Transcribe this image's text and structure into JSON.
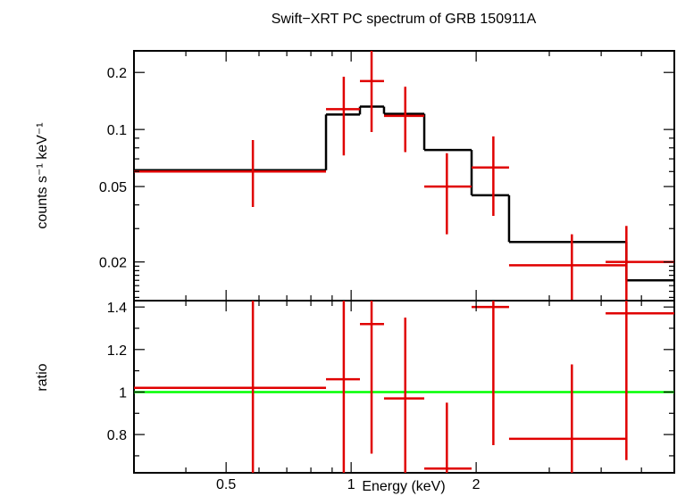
{
  "chart_data": [
    {
      "type": "line",
      "panel": "spectrum",
      "title": "Swift−XRT PC spectrum of GRB 150911A",
      "ylabel": "counts s⁻¹ keV⁻¹",
      "xlabel": "",
      "x_scale": "log",
      "y_scale": "log",
      "xlim": [
        0.3,
        6.0
      ],
      "ylim": [
        0.0125,
        0.26
      ],
      "yticks": [
        {
          "value": 0.02,
          "label": "0.02"
        },
        {
          "value": 0.05,
          "label": "0.05"
        },
        {
          "value": 0.1,
          "label": "0.1"
        },
        {
          "value": 0.2,
          "label": "0.2"
        }
      ],
      "data_points": [
        {
          "x": 0.58,
          "xlo": 0.3,
          "xhi": 0.87,
          "y": 0.06,
          "ylo": 0.039,
          "yhi": 0.088
        },
        {
          "x": 0.96,
          "xlo": 0.87,
          "xhi": 1.05,
          "y": 0.128,
          "ylo": 0.073,
          "yhi": 0.19
        },
        {
          "x": 1.12,
          "xlo": 1.05,
          "xhi": 1.2,
          "y": 0.18,
          "ylo": 0.097,
          "yhi": 0.27
        },
        {
          "x": 1.35,
          "xlo": 1.2,
          "xhi": 1.5,
          "y": 0.118,
          "ylo": 0.076,
          "yhi": 0.168
        },
        {
          "x": 1.7,
          "xlo": 1.5,
          "xhi": 1.95,
          "y": 0.05,
          "ylo": 0.028,
          "yhi": 0.075
        },
        {
          "x": 2.2,
          "xlo": 1.95,
          "xhi": 2.4,
          "y": 0.063,
          "ylo": 0.035,
          "yhi": 0.092
        },
        {
          "x": 3.4,
          "xlo": 2.4,
          "xhi": 4.6,
          "y": 0.0192,
          "ylo": 0.0125,
          "yhi": 0.028
        },
        {
          "x": 4.6,
          "xlo": 4.1,
          "xhi": 6.0,
          "y": 0.02,
          "ylo": 0.0125,
          "yhi": 0.031
        }
      ],
      "model_steps": [
        {
          "xlo": 0.3,
          "xhi": 0.87,
          "y": 0.061
        },
        {
          "xlo": 0.87,
          "xhi": 1.05,
          "y": 0.12
        },
        {
          "xlo": 1.05,
          "xhi": 1.2,
          "y": 0.132
        },
        {
          "xlo": 1.2,
          "xhi": 1.5,
          "y": 0.121
        },
        {
          "xlo": 1.5,
          "xhi": 1.95,
          "y": 0.078
        },
        {
          "xlo": 1.95,
          "xhi": 2.4,
          "y": 0.045
        },
        {
          "xlo": 2.4,
          "xhi": 4.6,
          "y": 0.0255
        },
        {
          "xlo": 4.6,
          "xhi": 6.0,
          "y": 0.016
        }
      ],
      "colors": {
        "data": "#e00000",
        "model": "#000000"
      }
    },
    {
      "type": "line",
      "panel": "ratio",
      "title": "",
      "ylabel": "ratio",
      "xlabel": "Energy (keV)",
      "x_scale": "log",
      "y_scale": "linear",
      "xlim": [
        0.3,
        6.0
      ],
      "ylim": [
        0.62,
        1.43
      ],
      "xticks": [
        {
          "value": 0.5,
          "label": "0.5"
        },
        {
          "value": 1,
          "label": "1"
        },
        {
          "value": 2,
          "label": "2"
        }
      ],
      "yticks": [
        {
          "value": 0.8,
          "label": "0.8"
        },
        {
          "value": 1,
          "label": "1"
        },
        {
          "value": 1.2,
          "label": "1.2"
        },
        {
          "value": 1.4,
          "label": "1.4"
        }
      ],
      "data_points": [
        {
          "x": 0.58,
          "xlo": 0.3,
          "xhi": 0.87,
          "y": 1.02,
          "ylo": 0.62,
          "yhi": 1.43
        },
        {
          "x": 0.96,
          "xlo": 0.87,
          "xhi": 1.05,
          "y": 1.06,
          "ylo": 0.62,
          "yhi": 1.43
        },
        {
          "x": 1.12,
          "xlo": 1.05,
          "xhi": 1.2,
          "y": 1.32,
          "ylo": 0.71,
          "yhi": 1.43
        },
        {
          "x": 1.35,
          "xlo": 1.2,
          "xhi": 1.5,
          "y": 0.97,
          "ylo": 0.62,
          "yhi": 1.35
        },
        {
          "x": 1.7,
          "xlo": 1.5,
          "xhi": 1.95,
          "y": 0.64,
          "ylo": 0.62,
          "yhi": 0.95
        },
        {
          "x": 2.2,
          "xlo": 1.95,
          "xhi": 2.4,
          "y": 1.4,
          "ylo": 0.75,
          "yhi": 1.43
        },
        {
          "x": 3.4,
          "xlo": 2.4,
          "xhi": 4.6,
          "y": 0.78,
          "ylo": 0.62,
          "yhi": 1.13
        },
        {
          "x": 4.6,
          "xlo": 4.1,
          "xhi": 6.0,
          "y": 1.37,
          "ylo": 0.68,
          "yhi": 1.43
        }
      ],
      "reference_line": {
        "y": 1.0,
        "color": "#00ff00"
      },
      "colors": {
        "data": "#e00000"
      }
    }
  ]
}
